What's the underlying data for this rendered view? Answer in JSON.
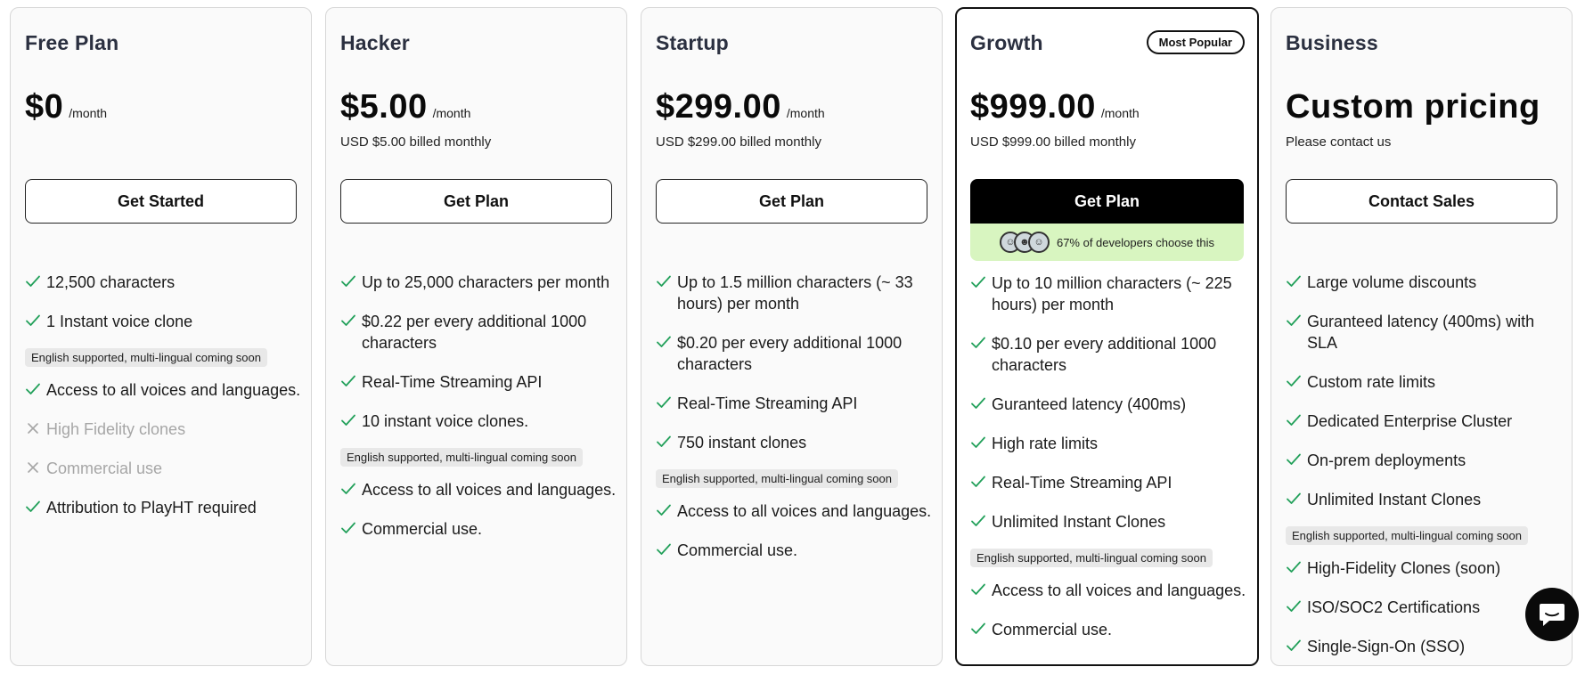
{
  "badge": "Most Popular",
  "social_proof": "67% of developers choose this",
  "note": "English supported, multi-lingual coming soon",
  "plans": [
    {
      "name": "Free Plan",
      "price": "$0",
      "period": "/month",
      "billed": "",
      "cta": "Get Started",
      "features": [
        {
          "text": "12,500 characters",
          "included": true
        },
        {
          "text": "1 Instant voice clone",
          "included": true,
          "note": true
        },
        {
          "text": "Access to all voices and languages.",
          "included": true
        },
        {
          "text": "High Fidelity clones",
          "included": false
        },
        {
          "text": "Commercial use",
          "included": false
        },
        {
          "text": "Attribution to PlayHT required",
          "included": true
        }
      ]
    },
    {
      "name": "Hacker",
      "price": "$5.00",
      "period": "/month",
      "billed": "USD $5.00 billed monthly",
      "cta": "Get Plan",
      "features": [
        {
          "text": "Up to 25,000 characters per month",
          "included": true
        },
        {
          "text": "$0.22 per every additional 1000 characters",
          "included": true
        },
        {
          "text": "Real-Time Streaming API",
          "included": true
        },
        {
          "text": "10 instant voice clones.",
          "included": true,
          "note": true
        },
        {
          "text": "Access to all voices and languages.",
          "included": true
        },
        {
          "text": "Commercial use.",
          "included": true
        }
      ]
    },
    {
      "name": "Startup",
      "price": "$299.00",
      "period": "/month",
      "billed": "USD $299.00 billed monthly",
      "cta": "Get Plan",
      "features": [
        {
          "text": "Up to 1.5 million characters (~ 33 hours) per month",
          "included": true
        },
        {
          "text": "$0.20 per every additional 1000 characters",
          "included": true
        },
        {
          "text": "Real-Time Streaming API",
          "included": true
        },
        {
          "text": "750 instant clones",
          "included": true,
          "note": true
        },
        {
          "text": "Access to all voices and languages.",
          "included": true
        },
        {
          "text": "Commercial use.",
          "included": true
        }
      ]
    },
    {
      "name": "Growth",
      "price": "$999.00",
      "period": "/month",
      "billed": "USD $999.00 billed monthly",
      "cta": "Get Plan",
      "featured": true,
      "features": [
        {
          "text": "Up to 10 million characters (~ 225 hours) per month",
          "included": true
        },
        {
          "text": "$0.10 per every additional 1000 characters",
          "included": true
        },
        {
          "text": "Guranteed latency (400ms)",
          "included": true
        },
        {
          "text": "High rate limits",
          "included": true
        },
        {
          "text": "Real-Time Streaming API",
          "included": true
        },
        {
          "text": "Unlimited Instant Clones",
          "included": true,
          "note": true
        },
        {
          "text": "Access to all voices and languages.",
          "included": true
        },
        {
          "text": "Commercial use.",
          "included": true
        }
      ]
    },
    {
      "name": "Business",
      "price": "Custom pricing",
      "period": "",
      "billed": "Please contact us",
      "cta": "Contact Sales",
      "features": [
        {
          "text": "Large volume discounts",
          "included": true
        },
        {
          "text": "Guranteed latency (400ms) with SLA",
          "included": true
        },
        {
          "text": "Custom rate limits",
          "included": true
        },
        {
          "text": "Dedicated Enterprise Cluster",
          "included": true
        },
        {
          "text": "On-prem deployments",
          "included": true
        },
        {
          "text": "Unlimited Instant Clones",
          "included": true,
          "note": true
        },
        {
          "text": "High-Fidelity Clones (soon)",
          "included": true
        },
        {
          "text": "ISO/SOC2 Certifications",
          "included": true
        },
        {
          "text": "Single-Sign-On (SSO)",
          "included": true
        }
      ]
    }
  ],
  "colors": {
    "check": "#22a05a",
    "cross": "#a6a6a6",
    "highlight": "#d8f5c0"
  }
}
